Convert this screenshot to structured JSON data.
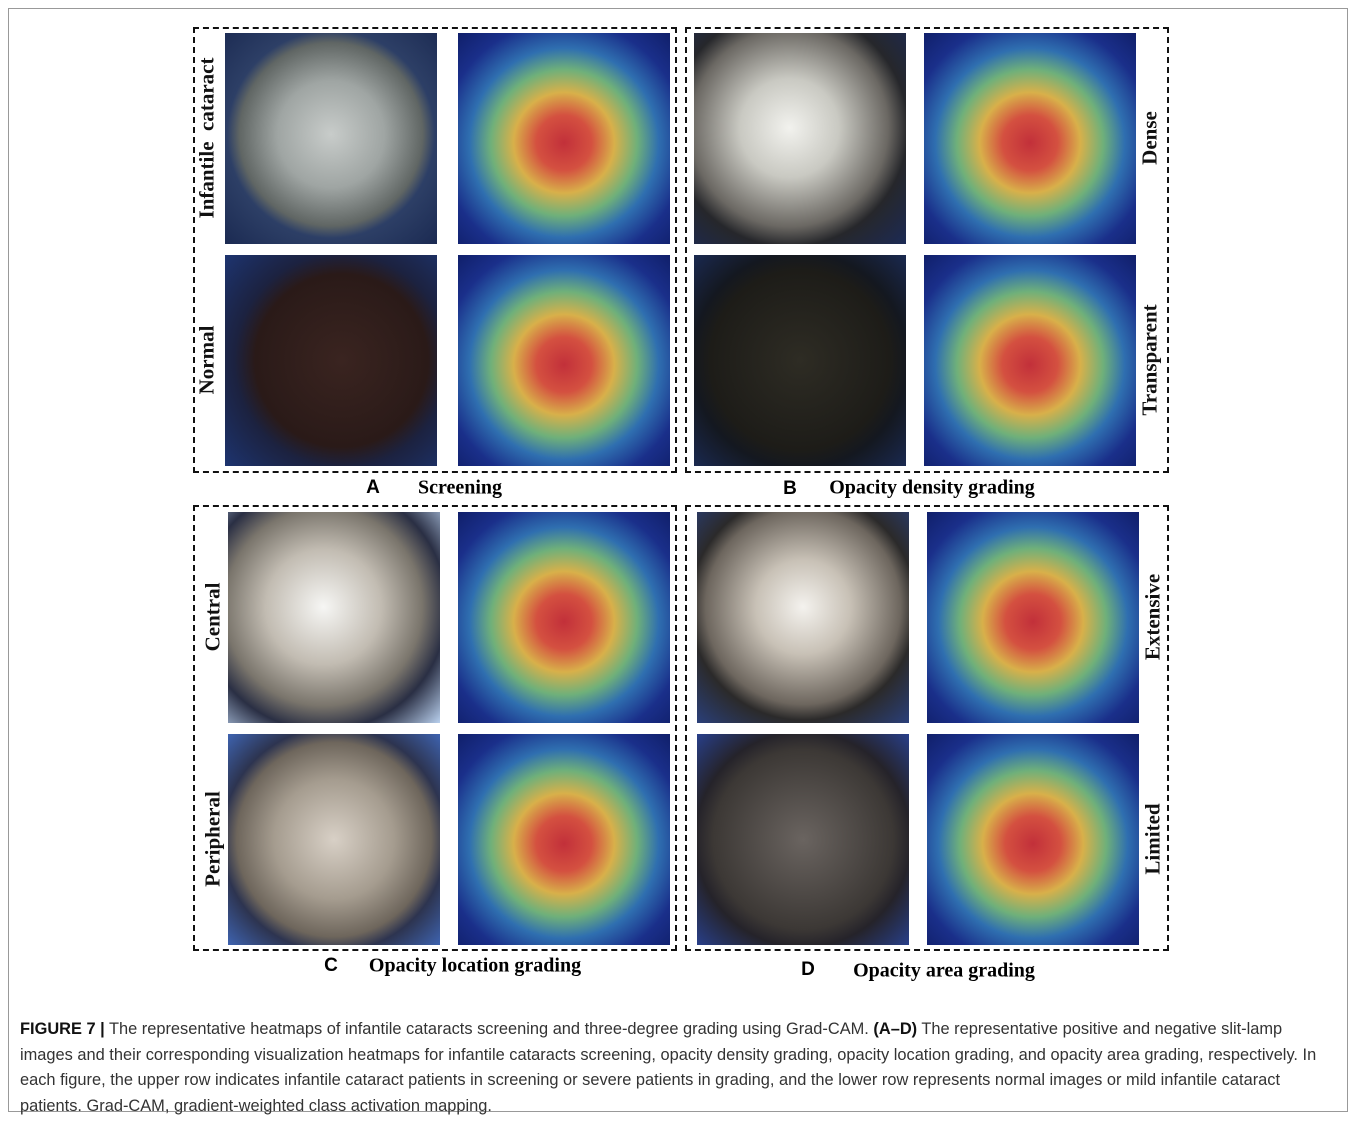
{
  "figure": {
    "panels": [
      {
        "letter": "A",
        "title": "Screening",
        "rows": [
          "Infantile  cataract",
          "Normal"
        ]
      },
      {
        "letter": "B",
        "title": "Opacity density grading",
        "rows": [
          "Dense",
          "Transparent"
        ]
      },
      {
        "letter": "C",
        "title": "Opacity location grading",
        "rows": [
          "Central",
          "Peripheral"
        ]
      },
      {
        "letter": "D",
        "title": "Opacity area grading",
        "rows": [
          "Extensive",
          "Limited"
        ]
      }
    ],
    "caption": {
      "label": "FIGURE 7 |",
      "text1": " The representative heatmaps of infantile cataracts screening and three-degree grading using Grad-CAM. ",
      "range": "(A–D)",
      "text2": " The representative positive and negative slit-lamp images and their corresponding visualization heatmaps for infantile cataracts screening, opacity density grading, opacity location grading, and opacity area grading, respectively. In each figure, the upper row indicates infantile cataract patients in screening or severe patients in grading, and the lower row represents normal images or mild infantile cataract patients. Grad-CAM, gradient-weighted class activation mapping."
    }
  }
}
